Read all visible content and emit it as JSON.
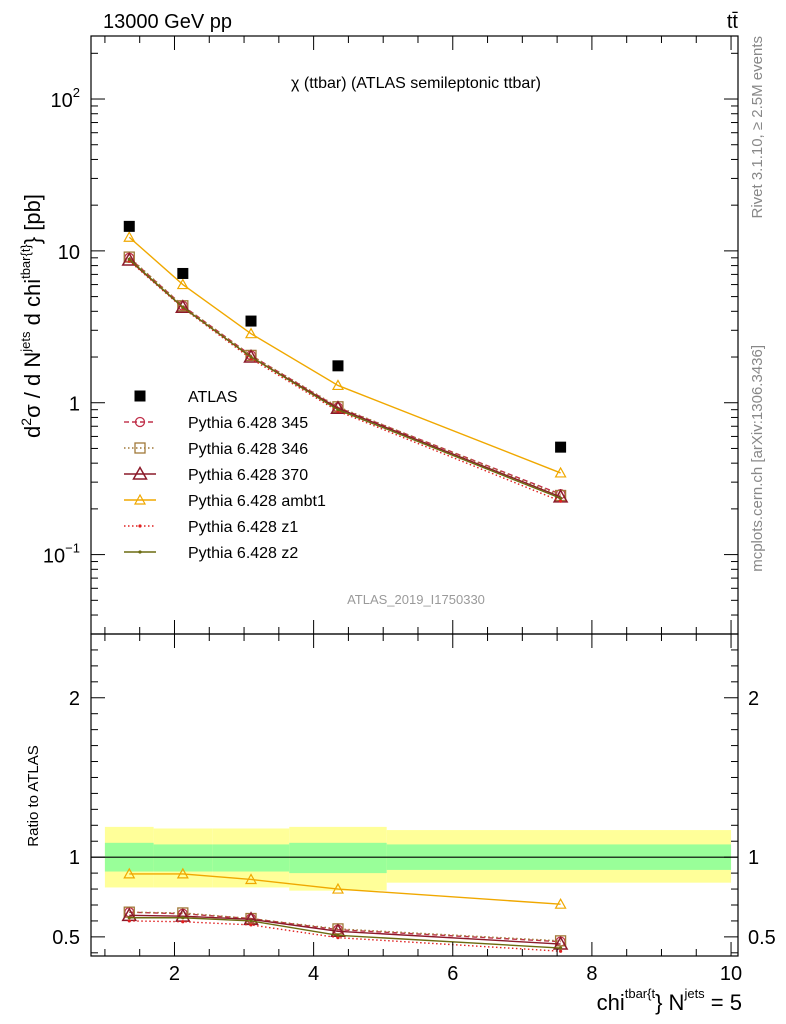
{
  "header": {
    "energy": "13000 GeV pp",
    "process": "tt̄"
  },
  "side_labels": {
    "rivet": "Rivet 3.1.10, ≥ 2.5M events",
    "mcplots": "mcplots.cern.ch [arXiv:1306.3436]"
  },
  "chart_data": [
    {
      "type": "scatter",
      "panel": "main",
      "title": "χ (ttbar) (ATLAS semileptonic ttbar)",
      "ylabel": "d²σ / d N^jets d chi^tbar{t} [pb]",
      "yscale": "log",
      "xlim": [
        0.8,
        10.1
      ],
      "ylim": [
        0.03,
        260
      ],
      "x": [
        1.35,
        2.12,
        3.1,
        4.35,
        7.55
      ],
      "xerr": [
        [
          1.0,
          1.7
        ],
        [
          1.7,
          2.55
        ],
        [
          2.55,
          3.65
        ],
        [
          3.65,
          5.05
        ],
        [
          5.05,
          10.0
        ]
      ],
      "series": [
        {
          "name": "ATLAS",
          "color": "#000000",
          "marker": "square",
          "values": [
            14.5,
            7.1,
            3.45,
            1.75,
            0.51
          ]
        },
        {
          "name": "Pythia 6.428 345",
          "color": "#c0304a",
          "marker": "circle",
          "dash": "dashed",
          "values": [
            9.0,
            4.35,
            2.05,
            0.93,
            0.25
          ]
        },
        {
          "name": "Pythia 6.428 346",
          "color": "#a07838",
          "marker": "square-open",
          "dash": "dotted",
          "values": [
            9.1,
            4.35,
            2.05,
            0.94,
            0.245
          ]
        },
        {
          "name": "Pythia 6.428 370",
          "color": "#8b1a2a",
          "marker": "triangle",
          "dash": "solid",
          "values": [
            8.7,
            4.25,
            2.0,
            0.92,
            0.24
          ]
        },
        {
          "name": "Pythia 6.428 ambt1",
          "color": "#f0a800",
          "marker": "triangle-small",
          "dash": "solid",
          "values": [
            12.3,
            6.0,
            2.85,
            1.3,
            0.345
          ]
        },
        {
          "name": "Pythia 6.428 z1",
          "color": "#e02020",
          "marker": "dot",
          "dash": "dotted",
          "values": [
            8.6,
            4.2,
            1.95,
            0.88,
            0.225
          ]
        },
        {
          "name": "Pythia 6.428 z2",
          "color": "#6b6b10",
          "marker": "dot",
          "dash": "solid",
          "values": [
            8.8,
            4.25,
            2.0,
            0.9,
            0.235
          ]
        }
      ],
      "watermark": "ATLAS_2019_I1750330",
      "legend_position": "left"
    },
    {
      "type": "line",
      "panel": "ratio",
      "ylabel": "Ratio to ATLAS",
      "xlabel": "chi^tbar{t} N^jets = 5",
      "xlim": [
        0.8,
        10.1
      ],
      "ylim": [
        0.38,
        2.4
      ],
      "x_ticks": [
        2,
        4,
        6,
        8,
        10
      ],
      "y_ticks": [
        0.5,
        1,
        2
      ],
      "reference": 1.0,
      "bands": {
        "green": [
          [
            0.91,
            1.09
          ],
          [
            0.91,
            1.08
          ],
          [
            0.91,
            1.08
          ],
          [
            0.9,
            1.09
          ],
          [
            0.92,
            1.08
          ]
        ],
        "yellow": [
          [
            0.81,
            1.19
          ],
          [
            0.81,
            1.18
          ],
          [
            0.81,
            1.18
          ],
          [
            0.79,
            1.19
          ],
          [
            0.84,
            1.17
          ]
        ]
      },
      "x": [
        1.35,
        2.12,
        3.1,
        4.35,
        7.55
      ],
      "series": [
        {
          "name": "Pythia 6.428 345",
          "values": [
            0.655,
            0.645,
            0.615,
            0.545,
            0.47
          ]
        },
        {
          "name": "Pythia 6.428 346",
          "values": [
            0.655,
            0.65,
            0.615,
            0.55,
            0.475
          ]
        },
        {
          "name": "Pythia 6.428 370",
          "values": [
            0.635,
            0.63,
            0.61,
            0.535,
            0.455
          ]
        },
        {
          "name": "Pythia 6.428 ambt1",
          "values": [
            0.895,
            0.895,
            0.86,
            0.8,
            0.705
          ]
        },
        {
          "name": "Pythia 6.428 z1",
          "values": [
            0.6,
            0.595,
            0.575,
            0.495,
            0.41
          ]
        },
        {
          "name": "Pythia 6.428 z2",
          "values": [
            0.62,
            0.62,
            0.6,
            0.51,
            0.43
          ]
        }
      ]
    }
  ]
}
